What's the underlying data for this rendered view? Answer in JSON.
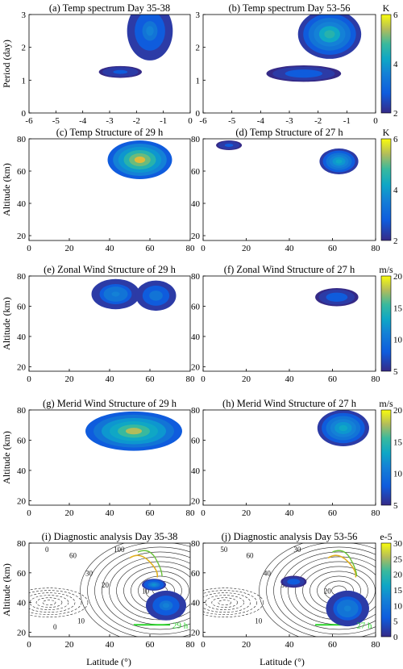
{
  "figure": {
    "shared_ylabel_spectrum": "Period (day)",
    "shared_ylabel_structure": "Altitude (km)",
    "shared_xlabel": "Latitude (°)"
  },
  "chart_data": [
    {
      "type": "heatmap",
      "title": "(a) Temp spectrum Day 35-38",
      "ylabel": "Period (day)",
      "xlabel": "",
      "xlim": [
        -6,
        0
      ],
      "ylim": [
        0,
        3
      ],
      "xticks": [
        "-6",
        "-5",
        "-4",
        "-3",
        "-2",
        "-1",
        "0"
      ],
      "yticks": [
        "0",
        "1",
        "2",
        "3"
      ],
      "blobs": [
        {
          "x": -1.5,
          "y": 2.5,
          "rx": 0.85,
          "ry": 0.9,
          "level": 3.2
        },
        {
          "x": -2.6,
          "y": 1.25,
          "rx": 0.8,
          "ry": 0.18,
          "level": 2.6
        }
      ]
    },
    {
      "type": "heatmap",
      "title": "(b) Temp spectrum Day 53-56",
      "ylabel": "",
      "xlabel": "",
      "xlim": [
        -6,
        0
      ],
      "ylim": [
        0,
        3
      ],
      "xticks": [
        "-6",
        "-5",
        "-4",
        "-3",
        "-2",
        "-1",
        "0"
      ],
      "yticks": [
        "0",
        "1",
        "2",
        "3"
      ],
      "colorbar": {
        "unit": "K",
        "ticks": [
          "2",
          "4",
          "6"
        ],
        "range": [
          2,
          6
        ]
      },
      "blobs": [
        {
          "x": -1.6,
          "y": 2.4,
          "rx": 1.1,
          "ry": 0.75,
          "level": 4.2
        },
        {
          "x": -2.5,
          "y": 1.2,
          "rx": 1.3,
          "ry": 0.25,
          "level": 2.8
        }
      ]
    },
    {
      "type": "heatmap",
      "title": "(c) Temp Structure of 29 h",
      "ylabel": "Altitude (km)",
      "xlabel": "",
      "xlim": [
        0,
        80
      ],
      "ylim": [
        17,
        80
      ],
      "xticks": [
        "0",
        "20",
        "40",
        "60",
        "80"
      ],
      "yticks": [
        "20",
        "40",
        "60",
        "80"
      ],
      "blobs": [
        {
          "x": 55,
          "y": 67,
          "rx": 16,
          "ry": 12,
          "level": 5.6
        }
      ]
    },
    {
      "type": "heatmap",
      "title": "(d) Temp Structure of 27 h",
      "ylabel": "",
      "xlabel": "",
      "xlim": [
        0,
        80
      ],
      "ylim": [
        17,
        80
      ],
      "xticks": [
        "0",
        "20",
        "40",
        "60",
        "80"
      ],
      "yticks": [
        "20",
        "40",
        "60",
        "80"
      ],
      "colorbar": {
        "unit": "K",
        "ticks": [
          "2",
          "4",
          "6"
        ],
        "range": [
          2,
          6
        ]
      },
      "blobs": [
        {
          "x": 63,
          "y": 66,
          "rx": 9,
          "ry": 8,
          "level": 4.0
        },
        {
          "x": 12,
          "y": 76,
          "rx": 6,
          "ry": 3,
          "level": 2.6
        }
      ]
    },
    {
      "type": "heatmap",
      "title": "(e) Zonal Wind Structure of 29 h",
      "ylabel": "Altitude (km)",
      "xlabel": "",
      "xlim": [
        0,
        80
      ],
      "ylim": [
        17,
        80
      ],
      "xticks": [
        "0",
        "20",
        "40",
        "60",
        "80"
      ],
      "yticks": [
        "20",
        "40",
        "60",
        "80"
      ],
      "blobs": [
        {
          "x": 43,
          "y": 68,
          "rx": 12,
          "ry": 10,
          "level": 10
        },
        {
          "x": 63,
          "y": 67,
          "rx": 10,
          "ry": 10,
          "level": 9
        }
      ]
    },
    {
      "type": "heatmap",
      "title": "(f) Zonal Wind Structure of 27 h",
      "ylabel": "",
      "xlabel": "",
      "xlim": [
        0,
        80
      ],
      "ylim": [
        17,
        80
      ],
      "xticks": [
        "0",
        "20",
        "40",
        "60",
        "80"
      ],
      "yticks": [
        "20",
        "40",
        "60",
        "80"
      ],
      "colorbar": {
        "unit": "m/s",
        "ticks": [
          "5",
          "10",
          "15",
          "20"
        ],
        "range": [
          5,
          20
        ]
      },
      "blobs": [
        {
          "x": 62,
          "y": 66,
          "rx": 10,
          "ry": 6,
          "level": 8
        }
      ]
    },
    {
      "type": "heatmap",
      "title": "(g) Merid Wind Structure of 29 h",
      "ylabel": "Altitude (km)",
      "xlabel": "",
      "xlim": [
        0,
        80
      ],
      "ylim": [
        17,
        80
      ],
      "xticks": [
        "0",
        "20",
        "40",
        "60",
        "80"
      ],
      "yticks": [
        "20",
        "40",
        "60",
        "80"
      ],
      "blobs": [
        {
          "x": 52,
          "y": 66,
          "rx": 24,
          "ry": 13,
          "level": 17
        }
      ]
    },
    {
      "type": "heatmap",
      "title": "(h) Merid Wind Structure of 27 h",
      "ylabel": "",
      "xlabel": "",
      "xlim": [
        0,
        80
      ],
      "ylim": [
        17,
        80
      ],
      "xticks": [
        "0",
        "20",
        "40",
        "60",
        "80"
      ],
      "yticks": [
        "20",
        "40",
        "60",
        "80"
      ],
      "colorbar": {
        "unit": "m/s",
        "ticks": [
          "5",
          "10",
          "15",
          "20"
        ],
        "range": [
          5,
          20
        ]
      },
      "blobs": [
        {
          "x": 65,
          "y": 68,
          "rx": 12,
          "ry": 12,
          "level": 12
        }
      ]
    },
    {
      "type": "heatmap",
      "title": "(i) Diagnostic analysis Day 35-38",
      "ylabel": "Altitude (km)",
      "xlabel": "Latitude (°)",
      "xlim": [
        0,
        80
      ],
      "ylim": [
        17,
        80
      ],
      "xticks": [
        "0",
        "20",
        "40",
        "60",
        "80"
      ],
      "yticks": [
        "20",
        "40",
        "60",
        "80"
      ],
      "contour_labels": [
        "0",
        "60",
        "100",
        "30",
        "20",
        "10",
        "10",
        "0"
      ],
      "annotation": "29 h",
      "blobs": [
        {
          "x": 68,
          "y": 38,
          "rx": 10,
          "ry": 10,
          "level": 9
        },
        {
          "x": 62,
          "y": 52,
          "rx": 6,
          "ry": 4,
          "level": 12
        }
      ]
    },
    {
      "type": "heatmap",
      "title": "(j) Diagnostic analysis Day 53-56",
      "ylabel": "",
      "xlabel": "Latitude (°)",
      "xlim": [
        0,
        80
      ],
      "ylim": [
        17,
        80
      ],
      "xticks": [
        "0",
        "20",
        "40",
        "60",
        "80"
      ],
      "yticks": [
        "20",
        "40",
        "60",
        "80"
      ],
      "colorbar": {
        "unit": "e-5",
        "ticks": [
          "0",
          "5",
          "10",
          "15",
          "20",
          "25",
          "30"
        ],
        "range": [
          0,
          30
        ]
      },
      "contour_labels": [
        "50",
        "60",
        "30",
        "40",
        "30",
        "20",
        "10"
      ],
      "annotation": "27 h",
      "blobs": [
        {
          "x": 67,
          "y": 36,
          "rx": 10,
          "ry": 12,
          "level": 10
        },
        {
          "x": 42,
          "y": 54,
          "rx": 6,
          "ry": 4,
          "level": 6
        }
      ]
    }
  ]
}
